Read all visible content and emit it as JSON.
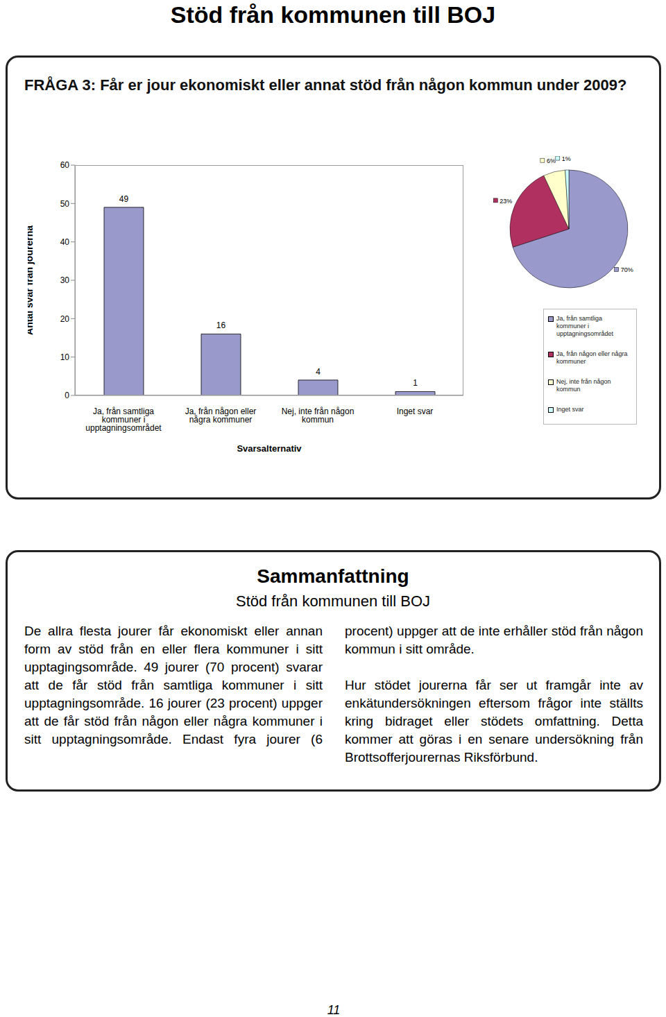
{
  "title": "Stöd från kommunen till BOJ",
  "question": "FRÅGA 3: Får er jour ekonomiskt eller annat stöd från någon kommun under 2009?",
  "chart_data": [
    {
      "type": "bar",
      "x_label": "Svarsalternativ",
      "y_label": "Antal svar från jourerna",
      "categories": [
        "Ja, från samtliga kommuner i upptagningsområdet",
        "Ja, från någon eller några kommuner",
        "Nej, inte från någon kommun",
        "Inget svar"
      ],
      "values": [
        49,
        16,
        4,
        1
      ],
      "color": "#9999cc",
      "ylim": [
        0,
        60
      ],
      "yticks": [
        0,
        10,
        20,
        30,
        40,
        50,
        60
      ],
      "grid": false,
      "data_labels": true
    },
    {
      "type": "pie",
      "categories": [
        "Ja, från samtliga kommuner i upptagningsområdet",
        "Ja, från någon eller några kommuner",
        "Nej, inte från någon kommun",
        "Inget svar"
      ],
      "values": [
        70,
        23,
        6,
        1
      ],
      "value_labels": [
        "70%",
        "23%",
        "6%",
        "1%"
      ],
      "colors": [
        "#9999cc",
        "#b03060",
        "#ffffcc",
        "#ccffff"
      ],
      "legend": "bottom",
      "data_labels": true
    }
  ],
  "summary": {
    "heading": "Sammanfattning",
    "subheading": "Stöd från kommunen till BOJ",
    "paragraphs": [
      "De allra flesta jourer får ekonomiskt eller annan form av stöd från en eller flera kommuner i sitt upptagingsområde. 49 jourer (70 procent) svarar att de får stöd från samtliga kommuner i sitt upptagningsområde. 16 jourer (23 procent) uppger att de får stöd från någon eller några kommuner i sitt upptagningsområde. Endast fyra jourer (6 procent) uppger att de inte erhåller stöd från någon kommun i sitt område.",
      "Hur stödet jourerna får ser ut framgår inte av enkätundersökningen eftersom frågor inte ställts kring bidraget eller stödets omfattning. Detta kommer att göras i en senare undersökning från Brottsofferjourernas Riksförbund."
    ]
  },
  "page_number": "11"
}
